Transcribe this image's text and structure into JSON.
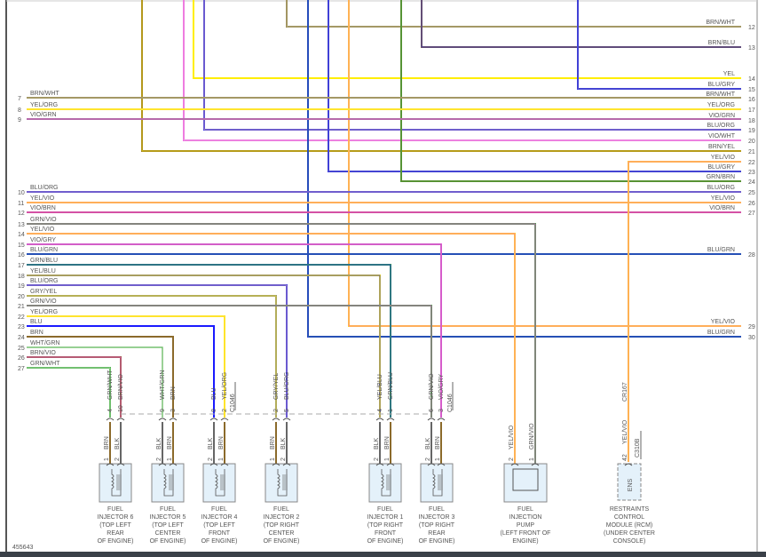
{
  "figure_id": "455643",
  "wire_colors": {
    "BRN": "#8B6A2B",
    "YEL": "#FFEE00",
    "VIO": "#FF44EE",
    "BLU": "#1A1AFF",
    "GRN": "#3BAA3B",
    "GRY": "#8A8A8A",
    "WHT": "#CFE6C8",
    "ORG": "#FFD27A",
    "BLK": "#666666"
  },
  "left_circuits": [
    {
      "num": "7",
      "label": "BRN/WHT"
    },
    {
      "num": "8",
      "label": "YEL/ORG"
    },
    {
      "num": "9",
      "label": "VIO/GRN"
    },
    {
      "num": "10",
      "label": "BLU/ORG"
    },
    {
      "num": "11",
      "label": "YEL/VIO"
    },
    {
      "num": "12",
      "label": "VIO/BRN"
    },
    {
      "num": "13",
      "label": "GRN/VIO"
    },
    {
      "num": "14",
      "label": "YEL/VIO"
    },
    {
      "num": "15",
      "label": "VIO/GRY"
    },
    {
      "num": "16",
      "label": "BLU/GRN"
    },
    {
      "num": "17",
      "label": "GRN/BLU"
    },
    {
      "num": "18",
      "label": "YEL/BLU"
    },
    {
      "num": "19",
      "label": "BLU/ORG"
    },
    {
      "num": "20",
      "label": "GRY/YEL"
    },
    {
      "num": "21",
      "label": "GRN/VIO"
    },
    {
      "num": "22",
      "label": "YEL/ORG"
    },
    {
      "num": "23",
      "label": "BLU"
    },
    {
      "num": "24",
      "label": "BRN"
    },
    {
      "num": "25",
      "label": "WHT/GRN"
    },
    {
      "num": "26",
      "label": "BRN/VIO"
    },
    {
      "num": "27",
      "label": "GRN/WHT"
    }
  ],
  "right_circuits": [
    {
      "num": "12",
      "label": "BRN/WHT"
    },
    {
      "num": "13",
      "label": "BRN/BLU"
    },
    {
      "num": "14",
      "label": "YEL"
    },
    {
      "num": "15",
      "label": "BLU/GRY"
    },
    {
      "num": "16",
      "label": "BRN/WHT"
    },
    {
      "num": "17",
      "label": "YEL/ORG"
    },
    {
      "num": "18",
      "label": "VIO/GRN"
    },
    {
      "num": "19",
      "label": "BLU/ORG"
    },
    {
      "num": "20",
      "label": "VIO/WHT"
    },
    {
      "num": "21",
      "label": "BRN/YEL"
    },
    {
      "num": "22",
      "label": "YEL/VIO"
    },
    {
      "num": "23",
      "label": "BLU/GRY"
    },
    {
      "num": "24",
      "label": "GRN/BRN"
    },
    {
      "num": "25",
      "label": "BLU/ORG"
    },
    {
      "num": "26",
      "label": "YEL/VIO"
    },
    {
      "num": "27",
      "label": "VIO/BRN"
    },
    {
      "num": "28",
      "label": "BLU/GRN"
    },
    {
      "num": "29",
      "label": "YEL/VIO"
    },
    {
      "num": "30",
      "label": "BLU/GRN"
    }
  ],
  "connector_c1046": "C1046",
  "components": [
    {
      "id": "inj6",
      "type": "injector",
      "lines": [
        "FUEL",
        "INJECTOR 6",
        "(TOP LEFT",
        "REAR",
        "OF ENGINE)"
      ],
      "pins": [
        {
          "top_pin": "4",
          "top_wire": "GRN/WHT",
          "pin": "1",
          "wire": "BRN"
        },
        {
          "top_pin": "10",
          "top_wire": "BRN/VIO",
          "pin": "2",
          "wire": "BLK"
        }
      ]
    },
    {
      "id": "inj5",
      "type": "injector",
      "lines": [
        "FUEL",
        "INJECTOR 5",
        "(TOP LEFT",
        "CENTER",
        "OF ENGINE)"
      ],
      "pins": [
        {
          "top_pin": "9",
          "top_wire": "WHT/GRN",
          "pin": "2",
          "wire": "BLK"
        },
        {
          "top_pin": "3",
          "top_wire": "BRN",
          "pin": "1",
          "wire": "BRN"
        }
      ]
    },
    {
      "id": "inj4",
      "type": "injector",
      "lines": [
        "FUEL",
        "INJECTOR 4",
        "(TOP LEFT",
        "FRONT",
        "OF ENGINE)"
      ],
      "pins": [
        {
          "top_pin": "8",
          "top_wire": "BLU",
          "pin": "2",
          "wire": "BLK"
        },
        {
          "top_pin": "2",
          "top_wire": "YEL/ORG",
          "pin": "1",
          "wire": "BRN"
        }
      ]
    },
    {
      "id": "inj2",
      "type": "injector",
      "lines": [
        "FUEL",
        "INJECTOR 2",
        "(TOP RIGHT",
        "CENTER",
        "OF ENGINE)"
      ],
      "pins": [
        {
          "top_pin": "2",
          "top_wire": "GRY/YEL",
          "pin": "1",
          "wire": "BRN"
        },
        {
          "top_pin": "5",
          "top_wire": "BLU/ORG",
          "pin": "2",
          "wire": "BLK"
        }
      ]
    },
    {
      "id": "inj1",
      "type": "injector",
      "lines": [
        "FUEL",
        "INJECTOR 1",
        "(TOP RIGHT",
        "FRONT",
        "OF ENGINE)"
      ],
      "pins": [
        {
          "top_pin": "4",
          "top_wire": "YEL/BLU",
          "pin": "2",
          "wire": "BLK"
        },
        {
          "top_pin": "1",
          "top_wire": "GRN/BLU",
          "pin": "1",
          "wire": "BRN"
        }
      ]
    },
    {
      "id": "inj3",
      "type": "injector",
      "lines": [
        "FUEL",
        "INJECTOR 3",
        "(TOP RIGHT",
        "REAR",
        "OF ENGINE)"
      ],
      "pins": [
        {
          "top_pin": "6",
          "top_wire": "GRN/VIO",
          "pin": "2",
          "wire": "BLK"
        },
        {
          "top_pin": "3",
          "top_wire": "VIO/GRY",
          "pin": "1",
          "wire": "BRN"
        }
      ]
    },
    {
      "id": "pump",
      "type": "pump",
      "lines": [
        "FUEL",
        "INJECTION",
        "PUMP",
        "(LEFT FRONT OF",
        "ENGINE)"
      ],
      "pins": [
        {
          "pin": "2",
          "wire": "YEL/VIO"
        },
        {
          "pin": "1",
          "wire": "GRN/VIO"
        }
      ]
    },
    {
      "id": "rcm",
      "type": "module",
      "inner_label": "ENS",
      "connector": "C310B",
      "circuit": "CR167",
      "lines": [
        "RESTRAINTS",
        "CONTROL",
        "MODULE (RCM)",
        "(UNDER CENTER",
        "CONSOLE)"
      ],
      "pins": [
        {
          "pin": "42",
          "wire": "YEL/VIO"
        }
      ]
    }
  ]
}
